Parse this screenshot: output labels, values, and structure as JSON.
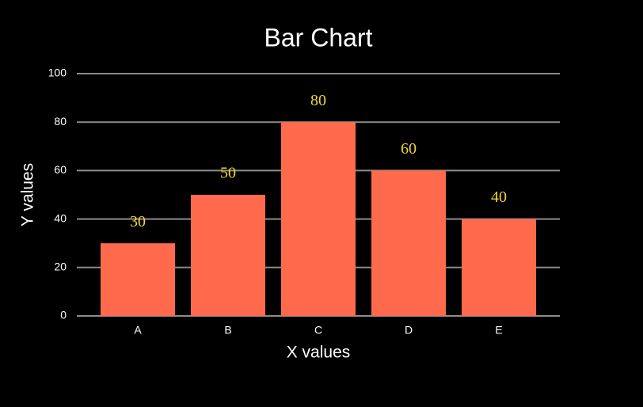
{
  "chart_data": {
    "type": "bar",
    "title": "Bar Chart",
    "x_label": "X values",
    "y_label": "Y values",
    "categories": [
      "A",
      "B",
      "C",
      "D",
      "E"
    ],
    "values": [
      30,
      50,
      80,
      60,
      40
    ],
    "color": "#ff6a4d",
    "value_label_color": "#f0d630",
    "grid_color": "#8c8c8c",
    "ylim": [
      0,
      100
    ],
    "yticks": [
      0,
      20,
      40,
      60,
      80,
      100
    ],
    "grid": true
  }
}
